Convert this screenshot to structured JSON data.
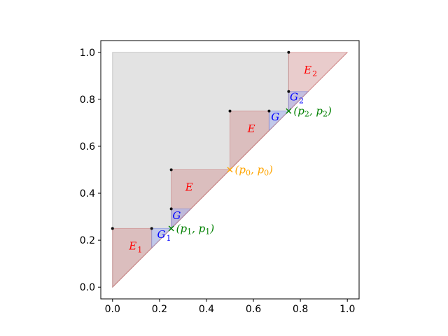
{
  "chart_data": {
    "type": "area",
    "title": "",
    "xlabel": "",
    "ylabel": "",
    "xlim": [
      -0.05,
      1.05
    ],
    "ylim": [
      -0.05,
      1.05
    ],
    "grid": false,
    "x_ticks": [
      0.0,
      0.2,
      0.4,
      0.6,
      0.8,
      1.0
    ],
    "y_ticks": [
      0.0,
      0.2,
      0.4,
      0.6,
      0.8,
      1.0
    ],
    "x_tick_labels": [
      "0.0",
      "0.2",
      "0.4",
      "0.6",
      "0.8",
      "1.0"
    ],
    "y_tick_labels": [
      "0.0",
      "0.2",
      "0.4",
      "0.6",
      "0.8",
      "1.0"
    ],
    "colors": {
      "gray_fill": "#c8c8c8",
      "red_fill": "#d49a9a",
      "red_edge": "#c46666",
      "blue_fill": "#a8b4f0",
      "blue_edge": "#6b7de0",
      "dots": "#111111",
      "green": "#008000",
      "orange": "#ffa500",
      "red_text": "#ff0000",
      "blue_text": "#0000ff"
    },
    "gray_region": [
      [
        0,
        0
      ],
      [
        0,
        1
      ],
      [
        0.75,
        1
      ],
      [
        0.75,
        0.75
      ],
      [
        0.5,
        0.5
      ],
      [
        0,
        0
      ]
    ],
    "red_regions": [
      [
        [
          0,
          0
        ],
        [
          0,
          0.25
        ],
        [
          0.1667,
          0.25
        ],
        [
          0.1667,
          0.1667
        ]
      ],
      [
        [
          0.25,
          0.25
        ],
        [
          0.25,
          0.5
        ],
        [
          0.5,
          0.5
        ]
      ],
      [
        [
          0.5,
          0.5
        ],
        [
          0.5,
          0.75
        ],
        [
          0.6667,
          0.75
        ],
        [
          0.6667,
          0.6667
        ]
      ],
      [
        [
          0.75,
          0.75
        ],
        [
          0.75,
          1
        ],
        [
          1,
          1
        ]
      ]
    ],
    "blue_regions": [
      [
        [
          0.1667,
          0.1667
        ],
        [
          0.1667,
          0.25
        ],
        [
          0.25,
          0.25
        ]
      ],
      [
        [
          0.25,
          0.25
        ],
        [
          0.25,
          0.3333
        ],
        [
          0.3333,
          0.3333
        ]
      ],
      [
        [
          0.6667,
          0.6667
        ],
        [
          0.6667,
          0.75
        ],
        [
          0.75,
          0.75
        ]
      ],
      [
        [
          0.75,
          0.75
        ],
        [
          0.75,
          0.8333
        ],
        [
          0.8333,
          0.8333
        ]
      ]
    ],
    "dots": [
      [
        0,
        0.25
      ],
      [
        0.1667,
        0.25
      ],
      [
        0.25,
        0.3333
      ],
      [
        0.25,
        0.5
      ],
      [
        0.5,
        0.75
      ],
      [
        0.6667,
        0.75
      ],
      [
        0.75,
        0.8333
      ],
      [
        0.75,
        1.0
      ]
    ],
    "fixed_points": [
      {
        "x": 0.25,
        "y": 0.25,
        "label": "(p1, p1)",
        "label_main": "(p",
        "sub": "1",
        "mid": ", p",
        "sub2": "1",
        "end": ")",
        "color": "#008000"
      },
      {
        "x": 0.5,
        "y": 0.5,
        "label": "(p0, p0)",
        "label_main": "(p",
        "sub": "0",
        "mid": ", p",
        "sub2": "0",
        "end": ")",
        "color": "#ffa500"
      },
      {
        "x": 0.75,
        "y": 0.75,
        "label": "(p2, p2)",
        "label_main": "(p",
        "sub": "2",
        "mid": ", p",
        "sub2": "2",
        "end": ")",
        "color": "#008000"
      }
    ],
    "region_labels": [
      {
        "text": "E",
        "sub": "1",
        "x": 0.07,
        "y": 0.16,
        "color": "#ff0000"
      },
      {
        "text": "G",
        "sub": "1",
        "x": 0.19,
        "y": 0.21,
        "color": "#0000ff"
      },
      {
        "text": "G",
        "sub": "",
        "x": 0.255,
        "y": 0.29,
        "color": "#0000ff"
      },
      {
        "text": "E",
        "sub": "",
        "x": 0.31,
        "y": 0.41,
        "color": "#ff0000"
      },
      {
        "text": "E",
        "sub": "",
        "x": 0.575,
        "y": 0.66,
        "color": "#ff0000"
      },
      {
        "text": "G",
        "sub": "",
        "x": 0.675,
        "y": 0.71,
        "color": "#0000ff"
      },
      {
        "text": "G",
        "sub": "2",
        "x": 0.755,
        "y": 0.795,
        "color": "#0000ff"
      },
      {
        "text": "E",
        "sub": "2",
        "x": 0.815,
        "y": 0.91,
        "color": "#ff0000"
      }
    ]
  }
}
